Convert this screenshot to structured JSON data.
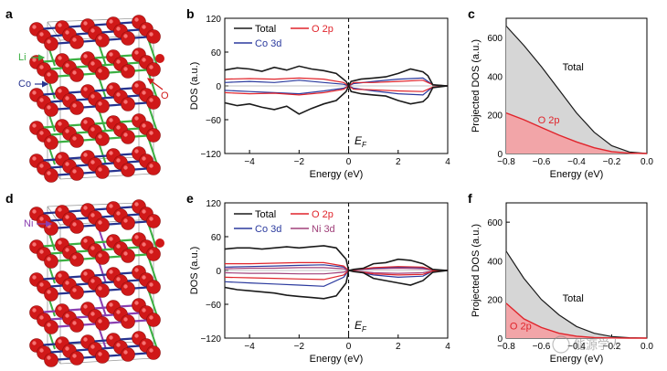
{
  "panels": {
    "a": {
      "letter": "a",
      "labels": {
        "li": "Li",
        "co": "Co",
        "o": "O"
      }
    },
    "d": {
      "letter": "d",
      "labels": {
        "ni": "Ni"
      }
    }
  },
  "legend_top": {
    "total": "Total",
    "o2p": "O 2p",
    "co3d": "Co 3d"
  },
  "legend_bottom": {
    "total": "Total",
    "o2p": "O 2p",
    "co3d": "Co 3d",
    "ni3d": "Ni 3d"
  },
  "fermi_label": "E",
  "fermi_sub": "F",
  "watermark": "能源学人",
  "colors": {
    "total": "#1a1a1a",
    "o2p": "#e0242b",
    "co3d": "#2b3a9e",
    "ni3d": "#a0407a",
    "oxygen": "#d01818",
    "cobalt": "#27338f",
    "lithium": "#3cb043",
    "nickel": "#8a3fb0",
    "fill_total": "#d6d6d6",
    "fill_o": "#f2a5a8"
  },
  "chart_data": [
    {
      "panel": "b",
      "type": "line",
      "xlabel": "Energy (eV)",
      "ylabel": "DOS (a.u.)",
      "xlim": [
        -5,
        4
      ],
      "ylim": [
        -120,
        120
      ],
      "xticks": [
        -4,
        -2,
        0,
        2,
        4
      ],
      "yticks": [
        -120,
        -60,
        0,
        60,
        120
      ],
      "fermi_level": 0,
      "series": [
        {
          "name": "Total",
          "upper": {
            "x": [
              -5,
              -4.5,
              -4,
              -3.5,
              -3,
              -2.5,
              -2,
              -1.5,
              -1,
              -0.5,
              -0.1,
              0,
              0.1,
              0.5,
              1,
              1.5,
              2,
              2.5,
              3,
              3.2,
              3.4,
              4
            ],
            "y": [
              28,
              32,
              30,
              26,
              33,
              28,
              35,
              30,
              27,
              22,
              8,
              0,
              8,
              12,
              14,
              16,
              22,
              30,
              25,
              18,
              2,
              0
            ]
          },
          "lower": {
            "x": [
              -5,
              -4.5,
              -4,
              -3.5,
              -3,
              -2.5,
              -2,
              -1.5,
              -1,
              -0.5,
              -0.1,
              0,
              0.1,
              0.5,
              1,
              1.5,
              2,
              2.5,
              3,
              3.2,
              3.4,
              4
            ],
            "y": [
              -30,
              -35,
              -32,
              -38,
              -42,
              -36,
              -50,
              -40,
              -32,
              -26,
              -10,
              0,
              -10,
              -14,
              -16,
              -18,
              -26,
              -32,
              -28,
              -20,
              -3,
              0
            ]
          }
        },
        {
          "name": "O 2p",
          "upper": {
            "x": [
              -5,
              -4,
              -3,
              -2,
              -1,
              -0.2,
              0,
              0.2,
              1,
              2,
              3,
              3.4,
              4
            ],
            "y": [
              12,
              13,
              12,
              14,
              12,
              6,
              0,
              6,
              6,
              8,
              10,
              2,
              0
            ]
          },
          "lower": {
            "x": [
              -5,
              -4,
              -3,
              -2,
              -1,
              -0.2,
              0,
              0.2,
              1,
              2,
              3,
              3.4,
              4
            ],
            "y": [
              -12,
              -14,
              -13,
              -16,
              -12,
              -6,
              0,
              -6,
              -7,
              -9,
              -10,
              -2,
              0
            ]
          }
        },
        {
          "name": "Co 3d",
          "upper": {
            "x": [
              -5,
              -4,
              -3,
              -2,
              -1,
              -0.2,
              0,
              0.2,
              1,
              2,
              3,
              3.4,
              4
            ],
            "y": [
              6,
              8,
              6,
              10,
              6,
              3,
              0,
              4,
              8,
              12,
              14,
              2,
              0
            ]
          },
          "lower": {
            "x": [
              -5,
              -4,
              -3,
              -2,
              -1,
              -0.2,
              0,
              0.2,
              1,
              2,
              3,
              3.4,
              4
            ],
            "y": [
              -8,
              -10,
              -12,
              -14,
              -9,
              -4,
              0,
              -4,
              -9,
              -14,
              -16,
              -2,
              0
            ]
          }
        }
      ]
    },
    {
      "panel": "c",
      "type": "area",
      "xlabel": "Energy (eV)",
      "ylabel": "Projected DOS (a.u.)",
      "xlim": [
        -0.8,
        0.0
      ],
      "ylim": [
        0,
        700
      ],
      "xticks": [
        -0.8,
        -0.6,
        -0.4,
        -0.2,
        0.0
      ],
      "yticks": [
        0,
        200,
        400,
        600
      ],
      "series": [
        {
          "name": "Total",
          "x": [
            -0.8,
            -0.7,
            -0.6,
            -0.5,
            -0.4,
            -0.3,
            -0.2,
            -0.1,
            0.0
          ],
          "y": [
            660,
            560,
            450,
            330,
            210,
            110,
            40,
            8,
            0
          ]
        },
        {
          "name": "O 2p",
          "x": [
            -0.8,
            -0.7,
            -0.6,
            -0.5,
            -0.4,
            -0.3,
            -0.2,
            -0.1,
            0.0
          ],
          "y": [
            210,
            175,
            135,
            95,
            60,
            30,
            10,
            2,
            0
          ]
        }
      ]
    },
    {
      "panel": "e",
      "type": "line",
      "xlabel": "Energy (eV)",
      "ylabel": "DOS (a.u.)",
      "xlim": [
        -5,
        4
      ],
      "ylim": [
        -120,
        120
      ],
      "xticks": [
        -4,
        -2,
        0,
        2,
        4
      ],
      "yticks": [
        -120,
        -60,
        0,
        60,
        120
      ],
      "fermi_level": 0,
      "series": [
        {
          "name": "Total",
          "upper": {
            "x": [
              -5,
              -4.5,
              -4,
              -3.5,
              -3,
              -2.5,
              -2,
              -1.5,
              -1,
              -0.5,
              -0.1,
              0,
              0.2,
              0.6,
              1,
              1.5,
              2,
              2.5,
              3,
              3.4,
              4
            ],
            "y": [
              38,
              40,
              40,
              38,
              40,
              42,
              40,
              42,
              44,
              40,
              20,
              0,
              2,
              4,
              12,
              14,
              20,
              18,
              12,
              2,
              0
            ]
          },
          "lower": {
            "x": [
              -5,
              -4.5,
              -4,
              -3.5,
              -3,
              -2.5,
              -2,
              -1.5,
              -1,
              -0.5,
              -0.1,
              0,
              0.2,
              0.6,
              1,
              1.5,
              2,
              2.5,
              3,
              3.4,
              4
            ],
            "y": [
              -30,
              -34,
              -36,
              -38,
              -40,
              -44,
              -46,
              -48,
              -50,
              -45,
              -22,
              0,
              -2,
              -4,
              -14,
              -18,
              -22,
              -26,
              -18,
              -3,
              0
            ]
          }
        },
        {
          "name": "O 2p",
          "upper": {
            "x": [
              -5,
              -4,
              -3,
              -2,
              -1,
              -0.2,
              0,
              0.2,
              1,
              2,
              3,
              3.4,
              4
            ],
            "y": [
              12,
              12,
              13,
              14,
              14,
              8,
              0,
              1,
              5,
              7,
              6,
              1,
              0
            ]
          },
          "lower": {
            "x": [
              -5,
              -4,
              -3,
              -2,
              -1,
              -0.2,
              0,
              0.2,
              1,
              2,
              3,
              3.4,
              4
            ],
            "y": [
              -12,
              -13,
              -14,
              -15,
              -16,
              -8,
              0,
              -1,
              -6,
              -8,
              -7,
              -1,
              0
            ]
          }
        },
        {
          "name": "Co 3d",
          "upper": {
            "x": [
              -5,
              -4,
              -3,
              -2,
              -1,
              -0.2,
              0,
              0.2,
              1,
              2,
              3,
              3.4,
              4
            ],
            "y": [
              6,
              7,
              8,
              9,
              10,
              6,
              0,
              1,
              4,
              6,
              5,
              1,
              0
            ]
          },
          "lower": {
            "x": [
              -5,
              -4,
              -3,
              -2,
              -1,
              -0.2,
              0,
              0.2,
              1,
              2,
              3,
              3.4,
              4
            ],
            "y": [
              -20,
              -22,
              -24,
              -26,
              -28,
              -12,
              0,
              -1,
              -8,
              -12,
              -10,
              -1,
              0
            ]
          }
        },
        {
          "name": "Ni 3d",
          "upper": {
            "x": [
              -5,
              -4,
              -3,
              -2,
              -1,
              -0.2,
              0,
              0.2,
              1,
              2,
              3,
              3.4,
              4
            ],
            "y": [
              3,
              4,
              4,
              5,
              5,
              3,
              0,
              1,
              3,
              4,
              3,
              1,
              0
            ]
          },
          "lower": {
            "x": [
              -5,
              -4,
              -3,
              -2,
              -1,
              -0.2,
              0,
              0.2,
              1,
              2,
              3,
              3.4,
              4
            ],
            "y": [
              -4,
              -5,
              -5,
              -6,
              -6,
              -3,
              0,
              -1,
              -4,
              -5,
              -4,
              -1,
              0
            ]
          }
        }
      ]
    },
    {
      "panel": "f",
      "type": "area",
      "xlabel": "Energy (eV)",
      "ylabel": "Projected DOS (a.u.)",
      "xlim": [
        -0.8,
        0.0
      ],
      "ylim": [
        0,
        700
      ],
      "xticks": [
        -0.8,
        -0.6,
        -0.4,
        -0.2,
        0.0
      ],
      "yticks": [
        0,
        200,
        400,
        600
      ],
      "series": [
        {
          "name": "Total",
          "x": [
            -0.8,
            -0.7,
            -0.6,
            -0.5,
            -0.4,
            -0.3,
            -0.2,
            -0.1,
            0.0
          ],
          "y": [
            450,
            310,
            200,
            120,
            60,
            25,
            8,
            2,
            0
          ]
        },
        {
          "name": "O 2p",
          "x": [
            -0.8,
            -0.7,
            -0.6,
            -0.5,
            -0.4,
            -0.3,
            -0.2,
            -0.1,
            0.0
          ],
          "y": [
            180,
            100,
            55,
            25,
            10,
            3,
            1,
            0,
            0
          ]
        }
      ]
    }
  ]
}
